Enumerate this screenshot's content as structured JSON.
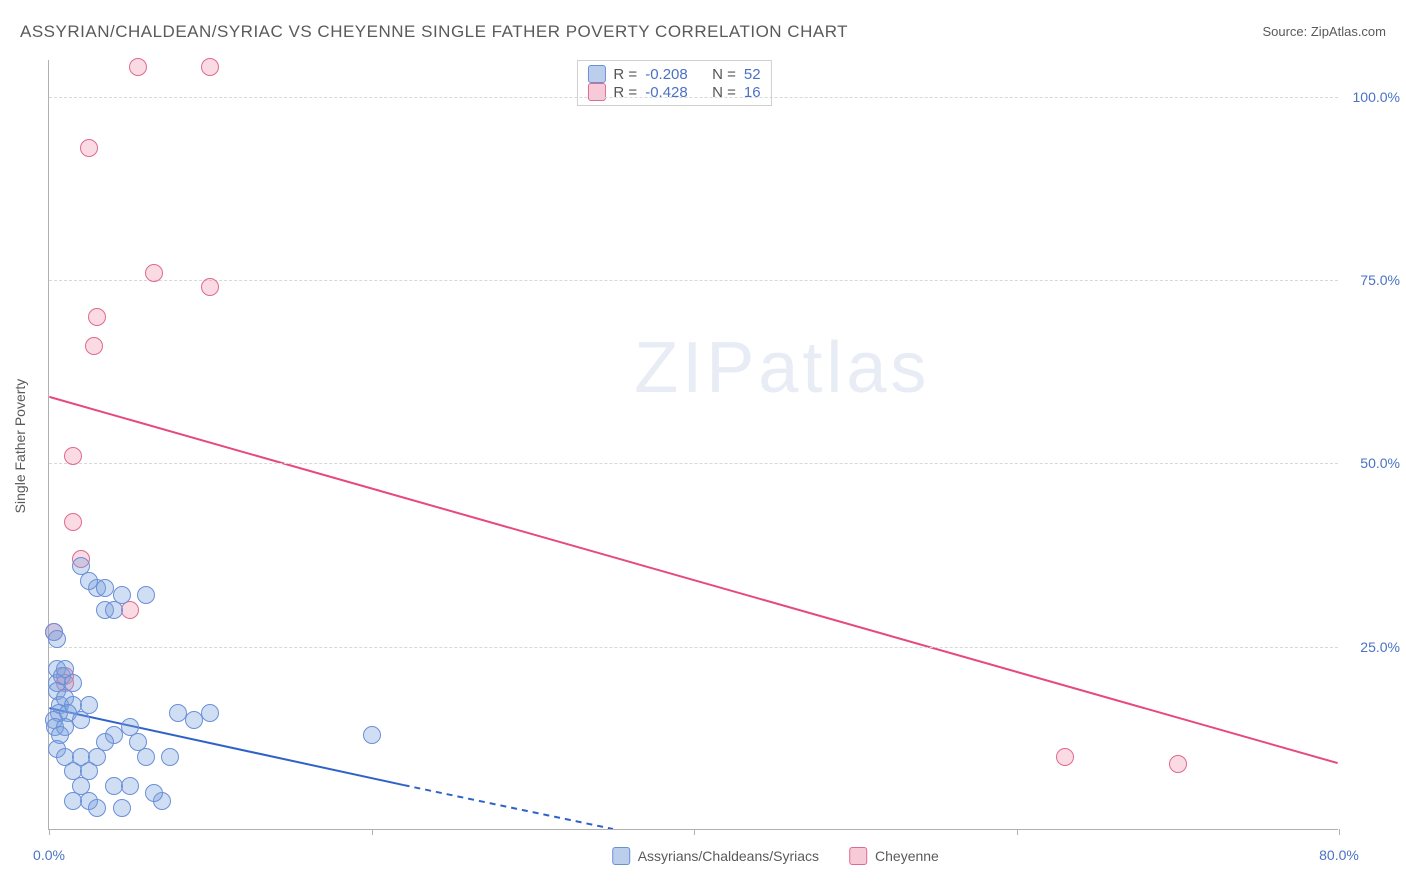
{
  "title": "ASSYRIAN/CHALDEAN/SYRIAC VS CHEYENNE SINGLE FATHER POVERTY CORRELATION CHART",
  "source_prefix": "Source: ",
  "source_name": "ZipAtlas.com",
  "ylabel": "Single Father Poverty",
  "watermark_a": "ZIP",
  "watermark_b": "atlas",
  "chart": {
    "type": "scatter",
    "background_color": "#ffffff",
    "grid_color": "#d8d8d8",
    "axis_color": "#b0b0b0",
    "tick_label_color": "#4a72c4",
    "label_color": "#5a5a5a",
    "label_fontsize": 14,
    "tick_fontsize": 14,
    "title_fontsize": 17,
    "xlim": [
      0,
      80
    ],
    "ylim": [
      0,
      105
    ],
    "xticks": [
      0,
      20,
      40,
      60,
      80
    ],
    "xtick_labels": [
      "0.0%",
      "",
      "",
      "",
      "80.0%"
    ],
    "yticks": [
      25,
      50,
      75,
      100
    ],
    "ytick_labels": [
      "25.0%",
      "50.0%",
      "75.0%",
      "100.0%"
    ],
    "marker_size": 18,
    "series": {
      "blue": {
        "label": "Assyrians/Chaldeans/Syriacs",
        "fill_color": "rgba(120,160,220,0.35)",
        "stroke_color": "#6a8fd8",
        "R": "-0.208",
        "N": "52",
        "points": [
          [
            0.3,
            27
          ],
          [
            0.5,
            22
          ],
          [
            0.5,
            20
          ],
          [
            0.8,
            21
          ],
          [
            0.5,
            19
          ],
          [
            0.7,
            17
          ],
          [
            1.0,
            18
          ],
          [
            0.6,
            16
          ],
          [
            1.5,
            17
          ],
          [
            1.2,
            16
          ],
          [
            0.3,
            15
          ],
          [
            2.0,
            15
          ],
          [
            0.4,
            14
          ],
          [
            1.0,
            14
          ],
          [
            0.7,
            13
          ],
          [
            2.5,
            17
          ],
          [
            3.0,
            33
          ],
          [
            3.5,
            33
          ],
          [
            4.5,
            32
          ],
          [
            6.0,
            32
          ],
          [
            3.5,
            30
          ],
          [
            4.0,
            30
          ],
          [
            2.5,
            34
          ],
          [
            2.0,
            36
          ],
          [
            1.0,
            22
          ],
          [
            1.5,
            20
          ],
          [
            0.5,
            11
          ],
          [
            1.0,
            10
          ],
          [
            2.0,
            10
          ],
          [
            3.0,
            10
          ],
          [
            1.5,
            8
          ],
          [
            2.5,
            8
          ],
          [
            4.0,
            6
          ],
          [
            5.0,
            6
          ],
          [
            7.0,
            4
          ],
          [
            6.0,
            10
          ],
          [
            7.5,
            10
          ],
          [
            9.0,
            15
          ],
          [
            8.0,
            16
          ],
          [
            10.0,
            16
          ],
          [
            4.0,
            13
          ],
          [
            5.0,
            14
          ],
          [
            5.5,
            12
          ],
          [
            3.5,
            12
          ],
          [
            6.5,
            5
          ],
          [
            2.5,
            4
          ],
          [
            20.0,
            13
          ],
          [
            4.5,
            3
          ],
          [
            3.0,
            3
          ],
          [
            1.5,
            4
          ],
          [
            2.0,
            6
          ],
          [
            0.5,
            26
          ]
        ],
        "trend": {
          "solid": [
            [
              0,
              16.5
            ],
            [
              22,
              6
            ]
          ],
          "dashed": [
            [
              22,
              6
            ],
            [
              35,
              0
            ]
          ],
          "color": "#2f62c9",
          "width": 2
        }
      },
      "pink": {
        "label": "Cheyenne",
        "fill_color": "rgba(240,150,175,0.35)",
        "stroke_color": "#e06a90",
        "R": "-0.428",
        "N": "16",
        "points": [
          [
            5.5,
            104
          ],
          [
            10.0,
            104
          ],
          [
            2.5,
            93
          ],
          [
            6.5,
            76
          ],
          [
            10.0,
            74
          ],
          [
            3.0,
            70
          ],
          [
            2.8,
            66
          ],
          [
            1.5,
            51
          ],
          [
            1.5,
            42
          ],
          [
            5.0,
            30
          ],
          [
            0.3,
            27
          ],
          [
            1.0,
            21
          ],
          [
            1.0,
            20
          ],
          [
            63.0,
            10
          ],
          [
            70.0,
            9
          ],
          [
            2.0,
            37
          ]
        ],
        "trend": {
          "solid": [
            [
              0,
              59
            ],
            [
              80,
              9
            ]
          ],
          "color": "#e64980",
          "width": 2
        }
      }
    }
  },
  "stats_labels": {
    "R": "R =",
    "N": "N ="
  }
}
